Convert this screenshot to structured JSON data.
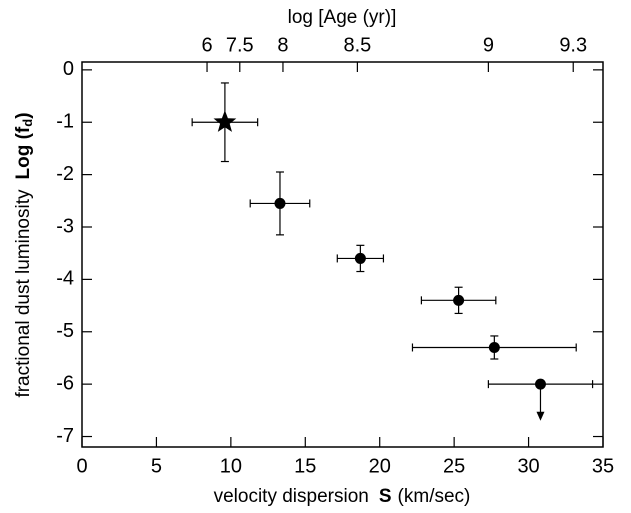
{
  "chart_data": {
    "type": "scatter",
    "top_xlabel": "log [Age (yr)]",
    "xlabel": "velocity dispersion",
    "xlabel_symbol": "S",
    "xlabel_unit": "(km/sec)",
    "ylabel": "fractional dust luminosity",
    "ylabel_symbol": "Log (f",
    "ylabel_subscript": "d",
    "ylabel_close": ")",
    "x": [
      9.6,
      13.3,
      18.7,
      25.3,
      27.7,
      30.8
    ],
    "values": [
      -1.0,
      -2.55,
      -3.6,
      -4.4,
      -5.3,
      -6.0
    ],
    "xerr": [
      2.2,
      2.0,
      1.55,
      2.5,
      5.5,
      3.5
    ],
    "yerr": [
      0.75,
      0.6,
      0.25,
      0.25,
      0.22,
      0.7
    ],
    "upper_limits": [
      false,
      false,
      false,
      false,
      false,
      true
    ],
    "markers": [
      "star",
      "circle",
      "circle",
      "circle",
      "circle",
      "circle"
    ],
    "color": "#000000",
    "xlim": [
      0,
      35
    ],
    "xticks": [
      0,
      5,
      10,
      15,
      20,
      25,
      30,
      35
    ],
    "ylim": [
      -7.2,
      0.15
    ],
    "yticks": [
      0,
      -1,
      -2,
      -3,
      -4,
      -5,
      -6,
      -7
    ],
    "top_xticks": [
      {
        "value": 8.4,
        "label": "6"
      },
      {
        "value": 10.6,
        "label": "7.5"
      },
      {
        "value": 13.5,
        "label": "8"
      },
      {
        "value": 18.5,
        "label": "8.5"
      },
      {
        "value": 27.3,
        "label": "9"
      },
      {
        "value": 33.0,
        "label": "9.3"
      }
    ]
  }
}
